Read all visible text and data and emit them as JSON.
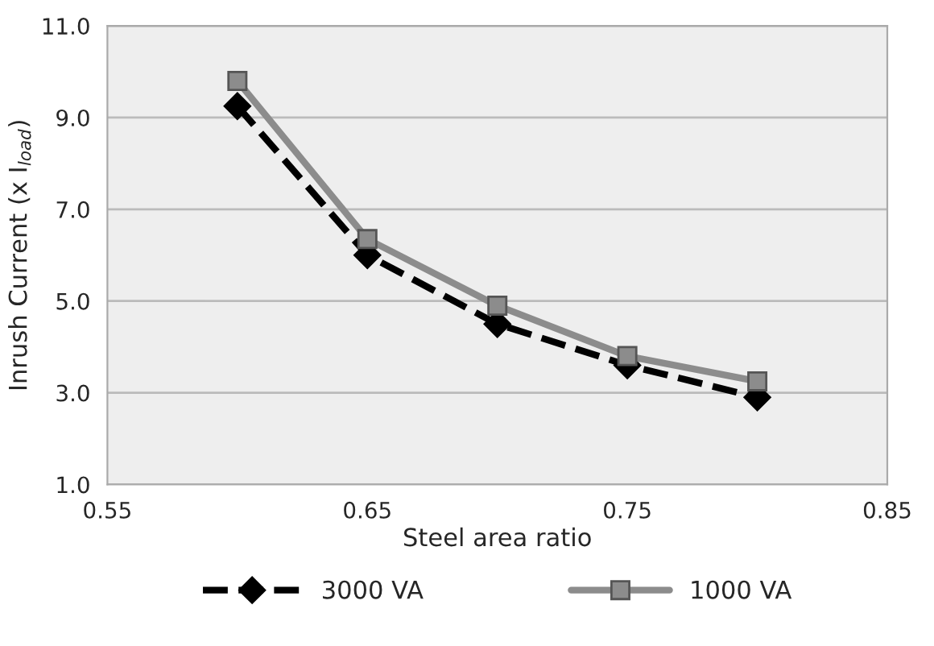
{
  "chart_data": {
    "type": "line",
    "xlabel": "Steel area ratio",
    "ylabel": "Inrush Current (x I$_{load}$)",
    "xlim": [
      0.55,
      0.85
    ],
    "xticks": [
      {
        "value": 0.55,
        "label": "0.55"
      },
      {
        "value": 0.65,
        "label": "0.65"
      },
      {
        "value": 0.75,
        "label": "0.75"
      },
      {
        "value": 0.85,
        "label": "0.85"
      }
    ],
    "ylim": [
      1.0,
      11.0
    ],
    "yticks": [
      {
        "value": 1.0,
        "label": "1.0"
      },
      {
        "value": 3.0,
        "label": "3.0"
      },
      {
        "value": 5.0,
        "label": "5.0"
      },
      {
        "value": 7.0,
        "label": "7.0"
      },
      {
        "value": 9.0,
        "label": "9.0"
      },
      {
        "value": 11.0,
        "label": "11.0"
      }
    ],
    "x": [
      0.6,
      0.65,
      0.7,
      0.75,
      0.8
    ],
    "grid": "y",
    "legend": "bottom",
    "series": [
      {
        "name": "3000 VA",
        "color": "#000000",
        "values": [
          9.25,
          6.0,
          4.5,
          3.6,
          2.9
        ],
        "marker": "diamond",
        "line_style": "dashed"
      },
      {
        "name": "1000 VA",
        "color": "#8c8c8c",
        "values": [
          9.8,
          6.35,
          4.9,
          3.8,
          3.25
        ],
        "marker": "square",
        "line_style": "solid"
      }
    ]
  }
}
